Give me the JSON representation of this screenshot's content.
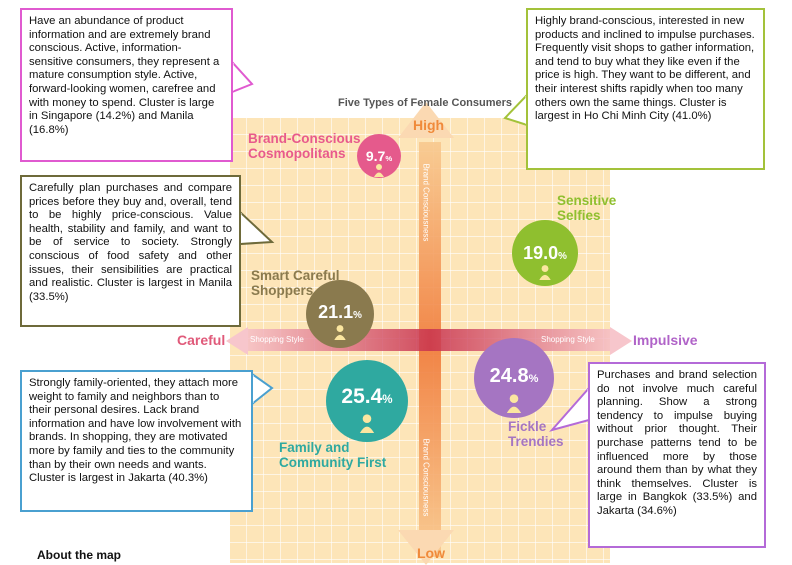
{
  "title": "Five Types of Female Consumers",
  "axis": {
    "high": "High",
    "low": "Low",
    "careful": "Careful",
    "impulsive": "Impulsive",
    "shopping_style_left": "Shopping Style",
    "shopping_style_right": "Shopping Style",
    "brand_top": "Brand Consciousness",
    "brand_bottom": "Brand Consciousness"
  },
  "segments": {
    "cosmopolitans": {
      "name_line1": "Brand-Conscious",
      "name_line2": "Cosmopolitans",
      "value": "9.7",
      "unit": "%",
      "color": "#e55a8c"
    },
    "selfies": {
      "name_line1": "Sensitive",
      "name_line2": "Selfies",
      "value": "19.0",
      "unit": "%",
      "color": "#8fbf2f"
    },
    "shoppers": {
      "name_line1": "Smart Careful",
      "name_line2": "Shoppers",
      "value": "21.1",
      "unit": "%",
      "color": "#8a7a4e"
    },
    "family": {
      "name_line1": "Family and",
      "name_line2": "Community First",
      "value": "25.4",
      "unit": "%",
      "color": "#2fa9a0"
    },
    "trendies": {
      "name_line1": "Fickle",
      "name_line2": "Trendies",
      "value": "24.8",
      "unit": "%",
      "color": "#a575c2"
    }
  },
  "callouts": {
    "cosmopolitans": "Have an abundance of product information and are extremely brand conscious. Active, information-sensitive consumers, they represent a mature consumption style. Active, forward-looking women, carefree and with money to spend. Cluster is large in Singapore (14.2%) and Manila (16.8%)",
    "selfies": "Highly brand-conscious, interested in new products and inclined to impulse purchases. Frequently visit shops to gather information, and tend to buy what they like even if the price is high. They want to be different, and their interest shifts rapidly when too many others own the same things. Cluster is largest in Ho Chi Minh City (41.0%)",
    "shoppers": "Carefully plan purchases and compare prices before they buy and, overall, tend to be highly price-conscious. Value health, stability and family, and want to be of service to society. Strongly conscious of food safety and other issues, their sensibilities are practical and realistic. Cluster is largest in Manila (33.5%)",
    "family": "Strongly family-oriented, they attach more weight to family and neighbors than to their personal desires. Lack brand information and have low involvement with brands. In shopping, they are motivated more by family and ties to the community than by their own needs and wants. Cluster is largest in Jakarta (40.3%)",
    "trendies": "Purchases and brand selection do not involve much careful planning. Show a strong tendency to impulse buying without prior thought. Their purchase patterns tend to be influenced more by those around them than by what they think themselves. Cluster is large in Bangkok (33.5%) and Jakarta (34.6%)"
  },
  "footer": "About the map",
  "colors": {
    "grid_bg": "#fde5b8",
    "grid_line": "#ffffff",
    "axis_orange": "#f0883a",
    "band_red": "#e05a6a",
    "impulsive_purple": "#b063c8",
    "cosmopolitans_border": "#e05ad0",
    "selfies_border": "#a3c23a",
    "shoppers_border": "#6e6a3a",
    "family_border": "#4aa0d0",
    "trendies_border": "#b46ad8"
  }
}
